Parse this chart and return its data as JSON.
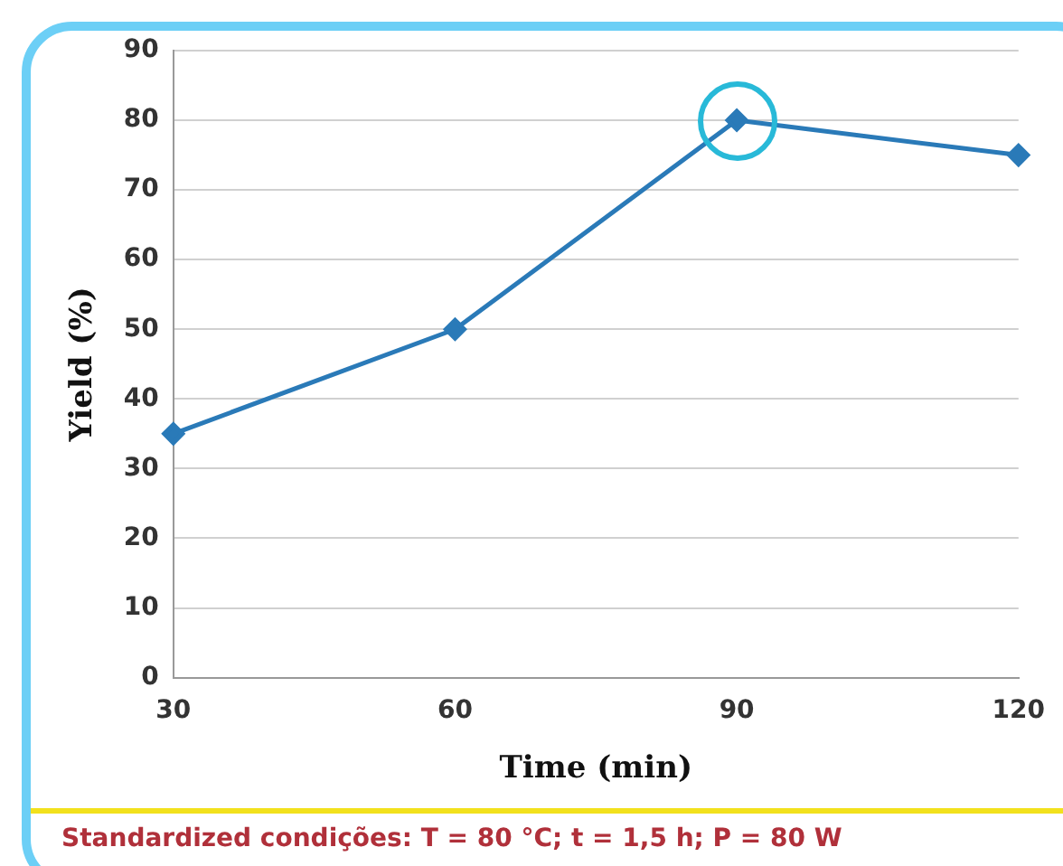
{
  "chart_data": {
    "type": "line",
    "xlabel": "Time (min)",
    "ylabel": "Yield (%)",
    "categories": [
      "30",
      "60",
      "90",
      "120"
    ],
    "series": [
      {
        "color": "#2a7ab8",
        "values": [
          35,
          50,
          80,
          75
        ]
      }
    ],
    "ylim": [
      0,
      90
    ],
    "yticks": [
      0,
      10,
      20,
      30,
      40,
      50,
      60,
      70,
      80,
      90
    ],
    "grid": "y",
    "legend": false,
    "marker": "diamond",
    "line_style": "solid",
    "annotations": [
      "Standardized condições: T = 80 °C; t = 1,5 h; P = 80 W"
    ]
  }
}
